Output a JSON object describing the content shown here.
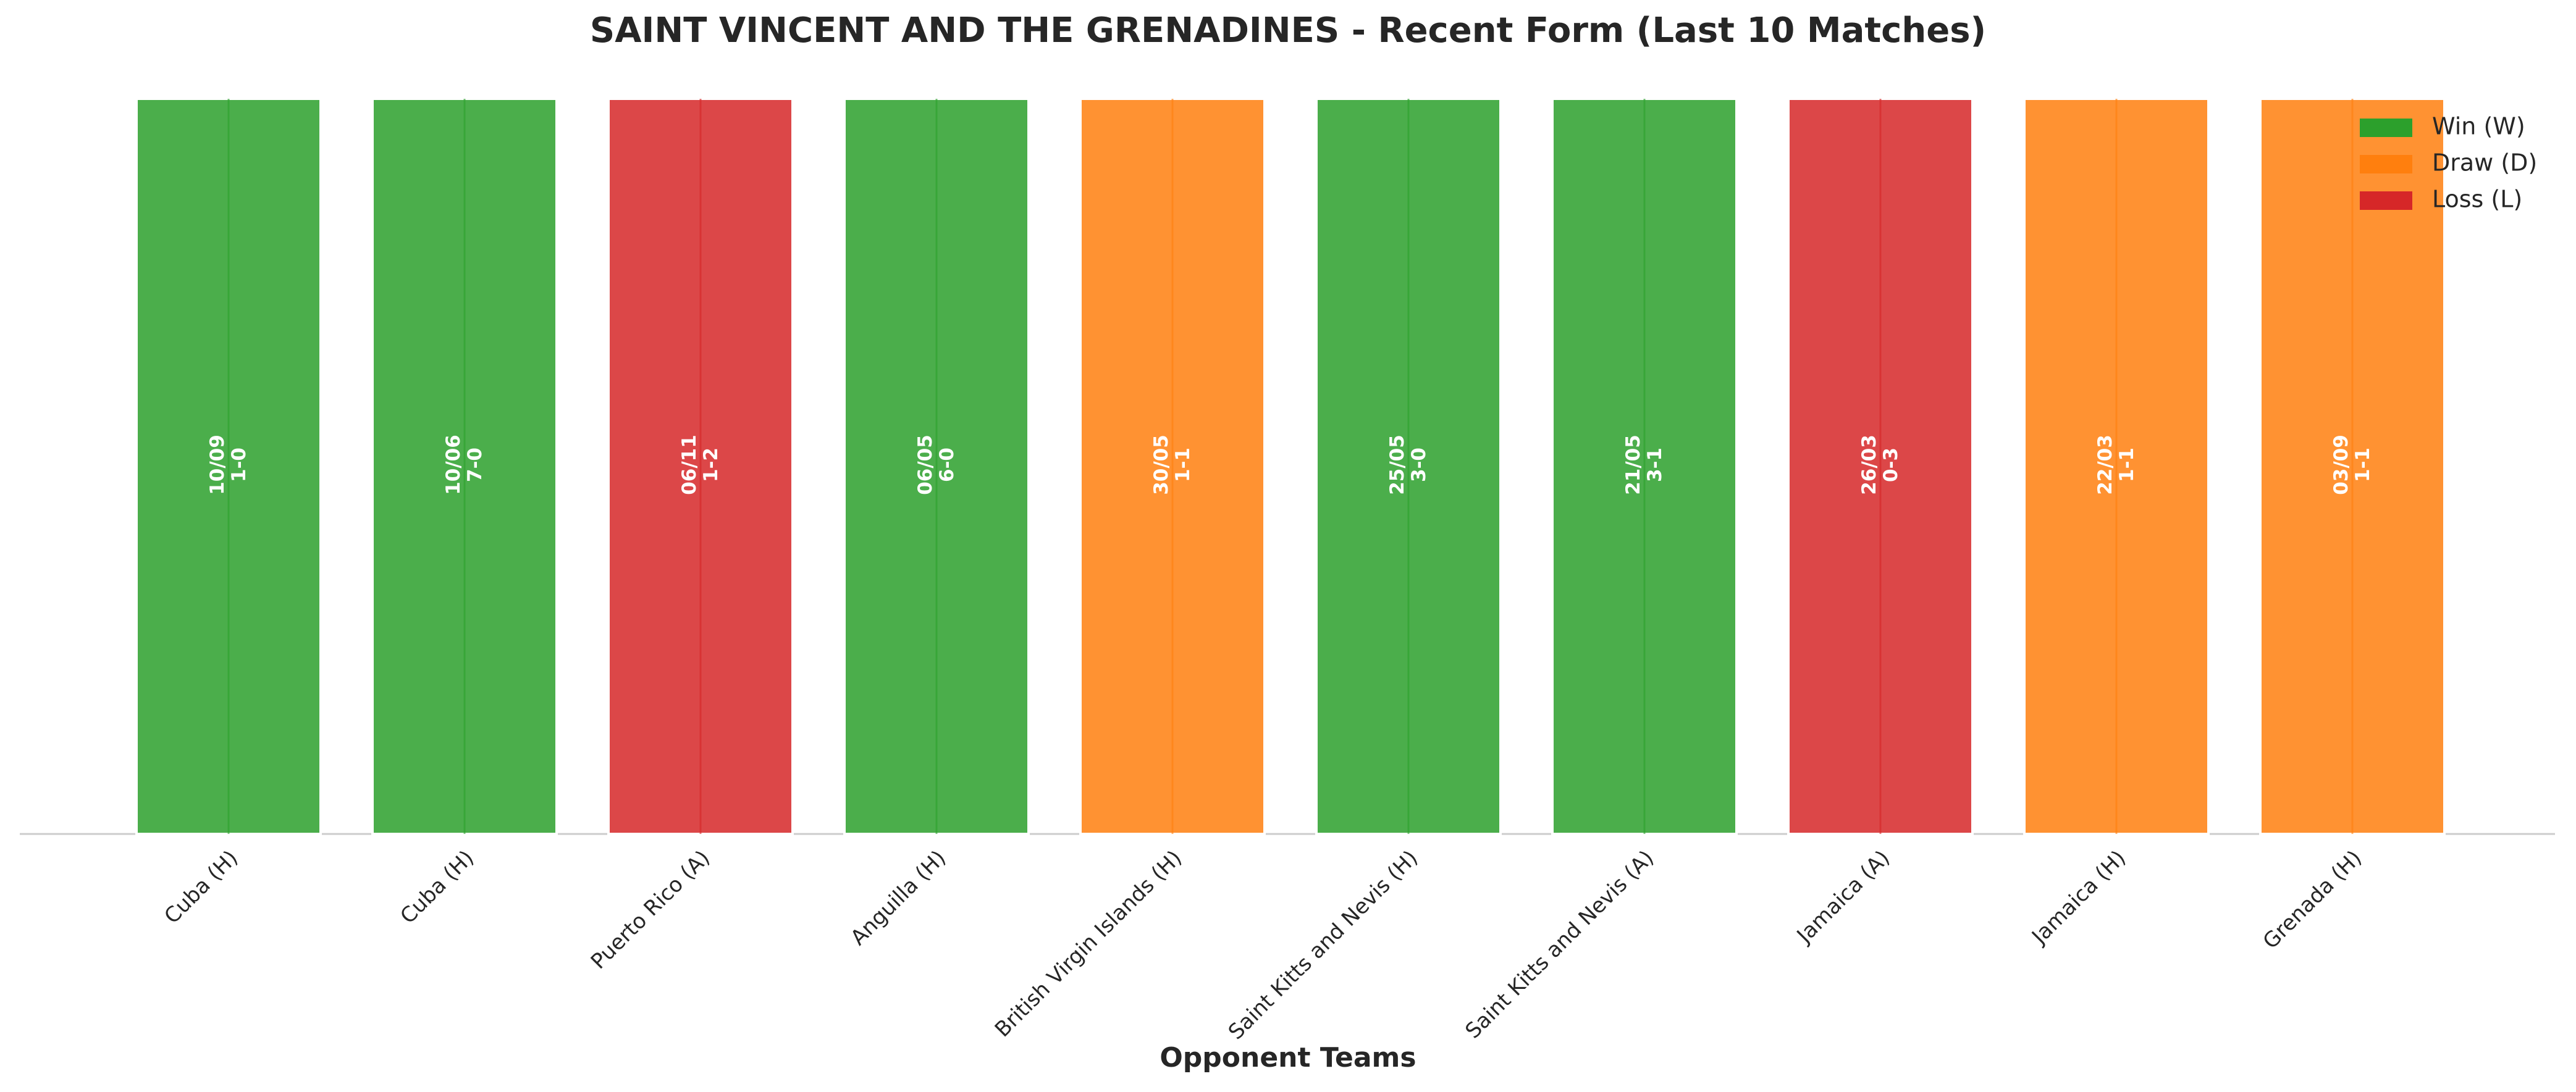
{
  "chart_data": {
    "type": "bar",
    "title": "SAINT VINCENT AND THE GRENADINES - Recent Form (Last 10 Matches)",
    "xlabel": "Opponent Teams",
    "categories": [
      "Cuba (H)",
      "Cuba (H)",
      "Puerto Rico (A)",
      "Anguilla (H)",
      "British Virgin Islands (H)",
      "Saint Kitts and Nevis (H)",
      "Saint Kitts and Nevis (A)",
      "Jamaica (A)",
      "Jamaica (H)",
      "Grenada (H)"
    ],
    "dates": [
      "10/09",
      "10/06",
      "06/11",
      "06/05",
      "30/05",
      "25/05",
      "21/05",
      "26/03",
      "22/03",
      "03/09"
    ],
    "scores": [
      "1-0",
      "7-0",
      "1-2",
      "6-0",
      "1-1",
      "3-0",
      "3-1",
      "0-3",
      "1-1",
      "1-1"
    ],
    "results": [
      0,
      0,
      2,
      0,
      1,
      0,
      0,
      2,
      1,
      1
    ],
    "legend_entries": [
      {
        "label": "Win (W)",
        "color": "#2ca02c"
      },
      {
        "label": "Draw (D)",
        "color": "#ff7f0e"
      },
      {
        "label": "Loss (L)",
        "color": "#d62728"
      }
    ],
    "legend_position": "upper right"
  }
}
